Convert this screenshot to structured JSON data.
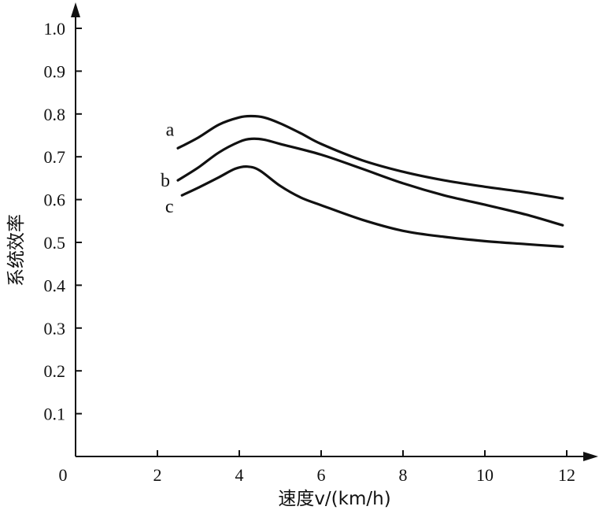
{
  "chart_data": {
    "type": "line",
    "title": "",
    "xlabel": "速度v/(km/h)",
    "ylabel": "系统效率",
    "xlim": [
      0,
      12
    ],
    "ylim": [
      0,
      1.0
    ],
    "grid": false,
    "origin_label": "0",
    "x_ticks": [
      {
        "value": 2,
        "label": "2"
      },
      {
        "value": 4,
        "label": "4"
      },
      {
        "value": 6,
        "label": "6"
      },
      {
        "value": 8,
        "label": "8"
      },
      {
        "value": 10,
        "label": "10"
      },
      {
        "value": 12,
        "label": "12"
      }
    ],
    "y_ticks": [
      {
        "value": 0.1,
        "label": "0.1"
      },
      {
        "value": 0.2,
        "label": "0.2"
      },
      {
        "value": 0.3,
        "label": "0.3"
      },
      {
        "value": 0.4,
        "label": "0.4"
      },
      {
        "value": 0.5,
        "label": "0.5"
      },
      {
        "value": 0.6,
        "label": "0.6"
      },
      {
        "value": 0.7,
        "label": "0.7"
      },
      {
        "value": 0.8,
        "label": "0.8"
      },
      {
        "value": 0.9,
        "label": "0.9"
      },
      {
        "value": 1.0,
        "label": "1.0"
      }
    ],
    "series": [
      {
        "name": "a",
        "x": [
          2.5,
          3.0,
          3.5,
          4.0,
          4.3,
          4.6,
          5.0,
          5.5,
          6.0,
          7.0,
          8.0,
          9.0,
          10.0,
          11.0,
          11.9
        ],
        "y": [
          0.72,
          0.745,
          0.775,
          0.792,
          0.795,
          0.792,
          0.778,
          0.755,
          0.73,
          0.692,
          0.665,
          0.645,
          0.63,
          0.617,
          0.603
        ]
      },
      {
        "name": "b",
        "x": [
          2.5,
          3.0,
          3.5,
          4.0,
          4.3,
          4.6,
          5.0,
          6.0,
          7.0,
          8.0,
          9.0,
          10.0,
          11.0,
          11.9
        ],
        "y": [
          0.645,
          0.675,
          0.71,
          0.735,
          0.742,
          0.74,
          0.73,
          0.705,
          0.672,
          0.638,
          0.61,
          0.588,
          0.565,
          0.54
        ]
      },
      {
        "name": "c",
        "x": [
          2.6,
          3.0,
          3.5,
          3.9,
          4.2,
          4.5,
          5.0,
          5.5,
          6.0,
          7.0,
          8.0,
          9.0,
          10.0,
          11.0,
          11.9
        ],
        "y": [
          0.61,
          0.628,
          0.652,
          0.672,
          0.677,
          0.668,
          0.632,
          0.605,
          0.587,
          0.553,
          0.527,
          0.513,
          0.503,
          0.496,
          0.49
        ]
      }
    ]
  }
}
